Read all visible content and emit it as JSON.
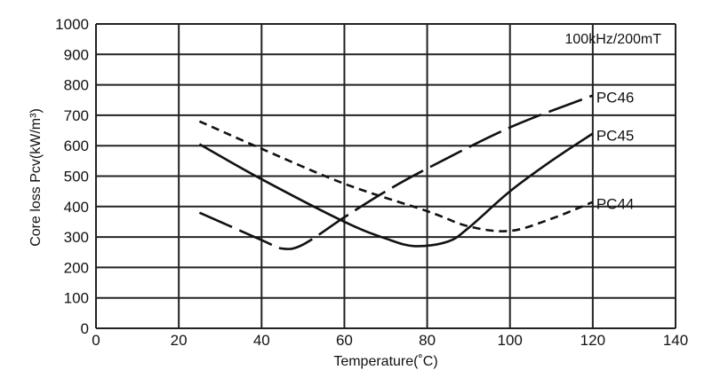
{
  "chart_data": {
    "type": "line",
    "title": "",
    "annotation": "100kHz/200mT",
    "xlabel": "Temperature(˚C)",
    "ylabel": "Core loss Pcv(kW/m³)",
    "xlim": [
      0,
      140
    ],
    "ylim": [
      0,
      1000
    ],
    "xticks": [
      "0",
      "20",
      "40",
      "60",
      "80",
      "100",
      "120",
      "140"
    ],
    "yticks": [
      "0",
      "100",
      "200",
      "300",
      "400",
      "500",
      "600",
      "700",
      "800",
      "900",
      "1000"
    ],
    "grid": true,
    "series": [
      {
        "name": "PC46",
        "style": "long-dash",
        "x": [
          25,
          40,
          45,
          50,
          60,
          70,
          80,
          100,
          120
        ],
        "y": [
          380,
          290,
          262,
          275,
          365,
          450,
          525,
          660,
          765
        ]
      },
      {
        "name": "PC45",
        "style": "solid",
        "x": [
          25,
          40,
          60,
          70,
          77,
          85,
          90,
          100,
          110,
          120
        ],
        "y": [
          605,
          490,
          350,
          295,
          270,
          285,
          330,
          450,
          550,
          640
        ]
      },
      {
        "name": "PC44",
        "style": "short-dash",
        "x": [
          25,
          40,
          60,
          80,
          90,
          100,
          110,
          120
        ],
        "y": [
          680,
          590,
          475,
          385,
          335,
          320,
          360,
          415
        ]
      }
    ]
  }
}
